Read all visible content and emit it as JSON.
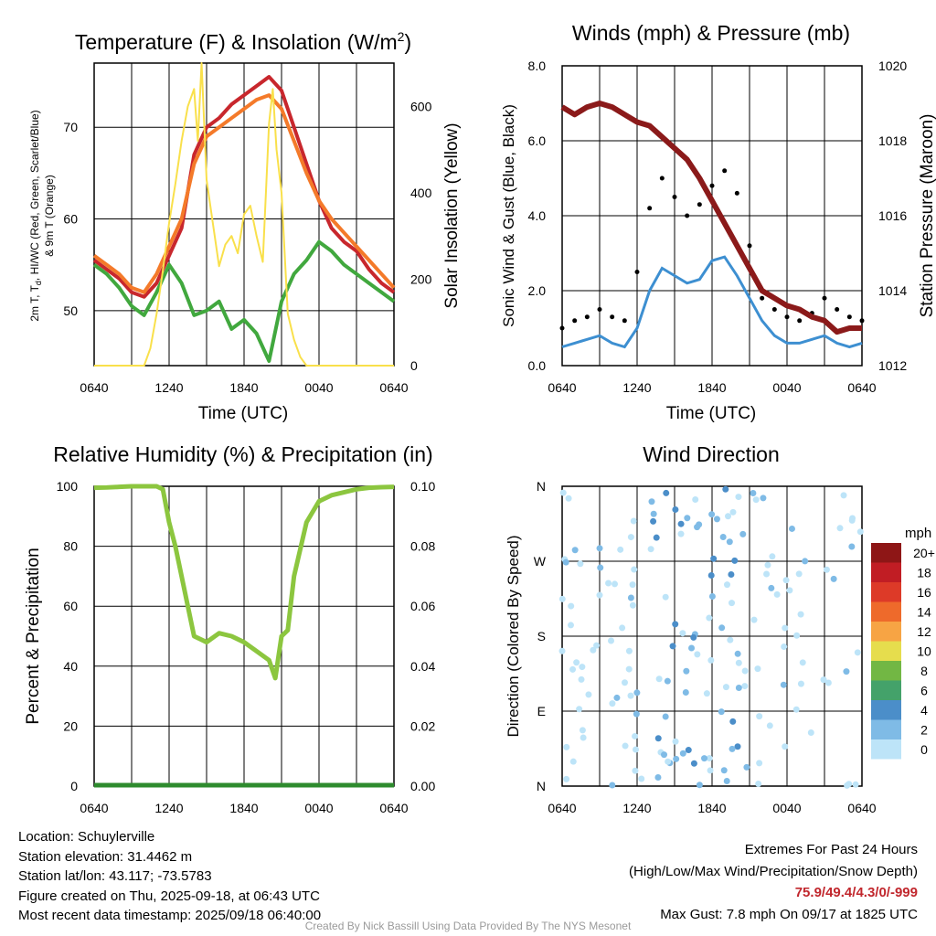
{
  "panels": {
    "temperature": {
      "title": "Temperature (F) & Insolation (W/m",
      "title_sup": "2",
      "title_end": ")",
      "ylabel_left_line1": "2m T, T",
      "ylabel_left_sub": "d",
      "ylabel_left_line1_end": ", HI/WC (Red, Green, Scarlet/Blue)",
      "ylabel_left_line2": "& 9m T (Orange)",
      "ylabel_right": "Solar Insolation (Yellow)",
      "xlabel": "Time (UTC)"
    },
    "winds": {
      "title": "Winds (mph) & Pressure (mb)",
      "ylabel_left": "Sonic Wind & Gust (Blue, Black)",
      "ylabel_right": "Station Pressure (Maroon)",
      "xlabel": "Time (UTC)"
    },
    "humidity": {
      "title": "Relative Humidity (%) & Precipitation (in)",
      "ylabel_left": "Percent & Precipitation"
    },
    "direction": {
      "title": "Wind Direction",
      "ylabel_left": "Direction (Colored By Speed)",
      "legend_title": "mph"
    }
  },
  "x_ticks": [
    "0640",
    "1240",
    "1840",
    "0040",
    "0640"
  ],
  "chart_data": [
    {
      "type": "line",
      "panel": "temperature",
      "x_ticks": [
        "0640",
        "1240",
        "1840",
        "0040",
        "0640"
      ],
      "xlim_hours": [
        0,
        24
      ],
      "ylim": [
        44,
        77
      ],
      "y_ticks": [
        50,
        60,
        70
      ],
      "y2lim": [
        0,
        700
      ],
      "y2_ticks": [
        0,
        200,
        400,
        600
      ],
      "series": [
        {
          "color": "#c8272d",
          "x": [
            0,
            1,
            2,
            3,
            4,
            5,
            6,
            7,
            8,
            9,
            10,
            11,
            12,
            13,
            14,
            15,
            16,
            17,
            18,
            19,
            20,
            21,
            22,
            23,
            24
          ],
          "y": [
            55.5,
            54.5,
            53.5,
            52,
            51.5,
            53,
            56,
            59,
            67,
            70,
            71,
            72.5,
            73.5,
            74.5,
            75.5,
            74,
            70,
            66,
            62,
            59,
            57.5,
            56.5,
            54.5,
            53,
            52
          ]
        },
        {
          "color": "#f47a2a",
          "x": [
            0,
            1,
            2,
            3,
            4,
            5,
            6,
            7,
            8,
            9,
            10,
            11,
            12,
            13,
            14,
            15,
            16,
            17,
            18,
            19,
            20,
            21,
            22,
            23,
            24
          ],
          "y": [
            56,
            55,
            54,
            52.5,
            52,
            54,
            57,
            60,
            66,
            69,
            70,
            71,
            72,
            73,
            73.5,
            72,
            68.5,
            65,
            62,
            60,
            58.5,
            57,
            55.5,
            54,
            52.5
          ]
        },
        {
          "color": "#41a83e",
          "x": [
            0,
            1,
            2,
            3,
            4,
            5,
            6,
            7,
            8,
            9,
            10,
            11,
            12,
            13,
            14,
            15,
            16,
            17,
            18,
            19,
            20,
            21,
            22,
            23,
            24
          ],
          "y": [
            55,
            54,
            52.5,
            50.5,
            49.5,
            52,
            55,
            53,
            49.5,
            50,
            51,
            48,
            49,
            47.5,
            44.5,
            51,
            54,
            55.5,
            57.5,
            56.5,
            55,
            54,
            53,
            52,
            51
          ]
        },
        {
          "color": "#f9e04b",
          "axis": "right",
          "x": [
            0,
            4,
            4.5,
            5,
            5.5,
            6,
            6.5,
            7,
            7.5,
            8,
            8.3,
            8.6,
            9,
            9.5,
            10,
            10.5,
            11,
            11.5,
            12,
            12.5,
            13,
            13.5,
            14,
            14.3,
            14.6,
            15,
            15.5,
            16,
            16.5,
            17,
            18,
            24
          ],
          "y": [
            0,
            0,
            40,
            120,
            220,
            330,
            420,
            520,
            600,
            640,
            520,
            700,
            430,
            330,
            230,
            280,
            300,
            260,
            350,
            370,
            300,
            240,
            560,
            640,
            500,
            400,
            120,
            60,
            20,
            0,
            0,
            0
          ]
        }
      ]
    },
    {
      "type": "scatter",
      "panel": "winds",
      "x_ticks": [
        "0640",
        "1240",
        "1840",
        "0040",
        "0640"
      ],
      "xlim_hours": [
        0,
        24
      ],
      "ylim": [
        0,
        8
      ],
      "y_ticks": [
        0.0,
        2.0,
        4.0,
        6.0,
        8.0
      ],
      "y2lim": [
        1012,
        1020
      ],
      "y2_ticks": [
        1012,
        1014,
        1016,
        1018,
        1020
      ],
      "series": [
        {
          "color": "#3d8fd1",
          "x": [
            0,
            1,
            2,
            3,
            4,
            5,
            6,
            7,
            8,
            9,
            10,
            11,
            12,
            13,
            14,
            15,
            16,
            17,
            18,
            19,
            20,
            21,
            22,
            23,
            24
          ],
          "y": [
            0.5,
            0.6,
            0.7,
            0.8,
            0.6,
            0.5,
            1.0,
            2.0,
            2.6,
            2.4,
            2.2,
            2.3,
            2.8,
            2.9,
            2.4,
            1.8,
            1.2,
            0.8,
            0.6,
            0.6,
            0.7,
            0.8,
            0.6,
            0.5,
            0.6
          ]
        },
        {
          "color": "#000000",
          "x": [
            0,
            1,
            2,
            3,
            4,
            5,
            6,
            7,
            8,
            9,
            10,
            11,
            12,
            13,
            14,
            15,
            16,
            17,
            18,
            19,
            20,
            21,
            22,
            23,
            24
          ],
          "y": [
            1.0,
            1.2,
            1.3,
            1.5,
            1.3,
            1.2,
            2.5,
            4.2,
            5.0,
            4.5,
            4.0,
            4.3,
            4.8,
            5.2,
            4.6,
            3.2,
            1.8,
            1.5,
            1.3,
            1.2,
            1.4,
            1.8,
            1.5,
            1.3,
            1.2
          ]
        },
        {
          "color": "#8b1a1a",
          "axis": "right",
          "x": [
            0,
            1,
            2,
            3,
            4,
            5,
            6,
            7,
            8,
            9,
            10,
            11,
            12,
            13,
            14,
            15,
            16,
            17,
            18,
            19,
            20,
            21,
            22,
            23,
            24
          ],
          "y": [
            1018.9,
            1018.7,
            1018.9,
            1019.0,
            1018.9,
            1018.7,
            1018.5,
            1018.4,
            1018.1,
            1017.8,
            1017.5,
            1017.0,
            1016.4,
            1015.8,
            1015.2,
            1014.6,
            1014.0,
            1013.8,
            1013.6,
            1013.5,
            1013.3,
            1013.2,
            1012.9,
            1013.0,
            1013.0
          ]
        }
      ]
    },
    {
      "type": "line",
      "panel": "humidity",
      "x_ticks": [
        "0640",
        "1240",
        "1840",
        "0040",
        "0640"
      ],
      "xlim_hours": [
        0,
        24
      ],
      "ylim": [
        0,
        100
      ],
      "y_ticks": [
        0,
        20,
        40,
        60,
        80,
        100
      ],
      "y2lim": [
        0,
        0.1
      ],
      "y2_ticks": [
        "0.00",
        "0.02",
        "0.04",
        "0.06",
        "0.08",
        "0.10"
      ],
      "series": [
        {
          "color": "#8cc63f",
          "x": [
            0,
            1,
            2,
            3,
            4,
            5,
            5.5,
            6,
            6.5,
            7,
            7.5,
            8,
            8.5,
            9,
            10,
            11,
            12,
            13,
            14,
            14.5,
            15,
            15.5,
            16,
            17,
            18,
            19,
            20,
            21,
            22,
            23,
            24
          ],
          "y": [
            99.5,
            99.6,
            99.8,
            100,
            100,
            100,
            99,
            88,
            80,
            70,
            60,
            50,
            49,
            48,
            51,
            50,
            48,
            45,
            42,
            36,
            50,
            52,
            70,
            88,
            95,
            97,
            98,
            99,
            99.5,
            99.7,
            99.8
          ]
        },
        {
          "color": "#2e8b2e",
          "x": [
            0,
            24
          ],
          "y": [
            0.3,
            0.3
          ]
        }
      ]
    },
    {
      "type": "scatter",
      "panel": "direction",
      "x_ticks": [
        "0640",
        "1240",
        "1840",
        "0040",
        "0640"
      ],
      "xlim_hours": [
        0,
        24
      ],
      "y_ticks": [
        "N",
        "E",
        "S",
        "W",
        "N"
      ],
      "y_values": [
        0,
        90,
        180,
        270,
        360
      ],
      "legend_labels": [
        "0",
        "2",
        "4",
        "6",
        "8",
        "10",
        "12",
        "14",
        "16",
        "18",
        "20+"
      ],
      "legend_colors": [
        "#bde4f8",
        "#7fbbe6",
        "#4b8ec9",
        "#44a26a",
        "#72b744",
        "#e6dd4d",
        "#f7a444",
        "#ee6a2b",
        "#dd3a28",
        "#c11d24",
        "#8e1616"
      ]
    }
  ],
  "info": {
    "location": "Location: Schuylerville",
    "elevation": "Station elevation: 31.4462 m",
    "latlon": "Station lat/lon: 43.117; -73.5783",
    "created": "Figure created on Thu, 2025-09-18, at 06:43 UTC",
    "recent": "Most recent data timestamp: 2025/09/18 06:40:00"
  },
  "extremes": {
    "title": "Extremes For Past 24 Hours",
    "subtitle": "(High/Low/Max Wind/Precipitation/Snow Depth)",
    "values": "75.9/49.4/4.3/0/-999",
    "gust": "Max Gust: 7.8 mph On 09/17 at 1825 UTC"
  },
  "credit": "Created By Nick Bassill Using Data Provided By The NYS Mesonet"
}
